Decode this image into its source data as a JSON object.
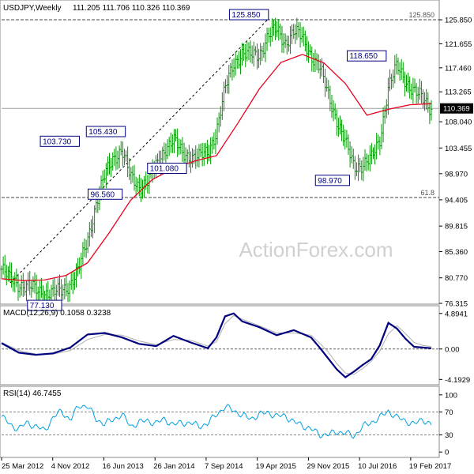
{
  "header": {
    "symbol_label": "USDJPY,Weekly",
    "ohlc_values": "111.205 111.706 110.326 110.369"
  },
  "watermark": "ActionForex.com",
  "colors": {
    "price_bars": "#009a00",
    "moving_average": "#e8001c",
    "macd_line": "#00007f",
    "macd_signal": "#b0b0b0",
    "rsi_line": "#00a0e0",
    "grid": "#c8c8c8",
    "annotation_box": "#000080",
    "current_price_box": "#000000"
  },
  "chart_data": [
    {
      "type": "line",
      "panel": "price",
      "ylim": [
        76.315,
        128.2
      ],
      "y_ticks": [
        "125.850",
        "121.655",
        "117.460",
        "113.265",
        "108.040",
        "103.455",
        "98.970",
        "94.405",
        "89.815",
        "85.360",
        "80.770",
        "76.315"
      ],
      "x_ticks": [
        "25 Mar 2012",
        "4 Nov 2012",
        "16 Jun 2013",
        "26 Jan 2014",
        "7 Sep 2014",
        "19 Apr 2015",
        "29 Nov 2015",
        "10 Jul 2016",
        "19 Feb 2017"
      ],
      "current_price": "110.369",
      "reference_lines": [
        {
          "label": "125.850",
          "value": 125.85
        },
        {
          "label": "61.8",
          "value": 94.8
        }
      ],
      "annotations": [
        {
          "label": "125.850",
          "x": 0.621,
          "y": 125.85
        },
        {
          "label": "103.730",
          "x": 0.181,
          "y": 103.73
        },
        {
          "label": "105.430",
          "x": 0.288,
          "y": 105.43
        },
        {
          "label": "96.560",
          "x": 0.241,
          "y": 96.56
        },
        {
          "label": "101.080",
          "x": 0.385,
          "y": 101.08
        },
        {
          "label": "118.650",
          "x": 0.895,
          "y": 118.65
        },
        {
          "label": "98.970",
          "x": 0.77,
          "y": 98.97
        },
        {
          "label": "77.130",
          "x": 0.1,
          "y": 77.13
        }
      ],
      "trendline": {
        "from": [
          0.02,
          79.9
        ],
        "to": [
          0.622,
          126.1
        ]
      },
      "series": [
        {
          "kind": "weekly_close",
          "x": [
            0.0,
            0.02,
            0.04,
            0.06,
            0.08,
            0.1,
            0.12,
            0.14,
            0.16,
            0.18,
            0.2,
            0.22,
            0.24,
            0.26,
            0.28,
            0.3,
            0.32,
            0.34,
            0.36,
            0.38,
            0.4,
            0.42,
            0.44,
            0.46,
            0.48,
            0.5,
            0.52,
            0.54,
            0.56,
            0.58,
            0.6,
            0.62,
            0.64,
            0.66,
            0.68,
            0.7,
            0.72,
            0.74,
            0.76,
            0.78,
            0.8,
            0.82,
            0.84,
            0.86,
            0.88,
            0.9,
            0.92,
            0.94,
            0.96,
            0.98,
            1.0
          ],
          "values": [
            82.3,
            80.5,
            79.8,
            79.2,
            78.7,
            78.2,
            78.0,
            78.6,
            79.8,
            82.2,
            87.5,
            93.8,
            98.5,
            101.8,
            103.2,
            98.2,
            96.8,
            97.7,
            100.2,
            103.5,
            104.8,
            102.5,
            102.1,
            101.8,
            102.6,
            106.5,
            113.6,
            118.3,
            120.1,
            119.5,
            119.8,
            123.1,
            124.0,
            121.9,
            123.8,
            122.6,
            119.8,
            117.4,
            112.8,
            108.4,
            104.3,
            100.3,
            100.6,
            101.4,
            104.9,
            114.2,
            117.6,
            115.3,
            113.4,
            111.9,
            110.369
          ]
        },
        {
          "kind": "moving_average",
          "x": [
            0.0,
            0.05,
            0.1,
            0.15,
            0.2,
            0.25,
            0.3,
            0.35,
            0.4,
            0.45,
            0.5,
            0.55,
            0.6,
            0.65,
            0.7,
            0.75,
            0.8,
            0.85,
            0.9,
            0.95,
            1.0
          ],
          "values": [
            80.6,
            80.3,
            80.4,
            81.2,
            83.4,
            88.6,
            94.3,
            97.9,
            99.9,
            101.2,
            102.1,
            107.8,
            113.8,
            118.4,
            119.8,
            118.3,
            114.7,
            109.2,
            110.2,
            111.0,
            111.2
          ]
        }
      ]
    },
    {
      "type": "line",
      "panel": "macd",
      "title": "MACD(12,26,9) 0.1058 0.3238",
      "ylim": [
        -4.1929,
        4.8941
      ],
      "y_ticks": [
        "4.8941",
        "0.00",
        "-4.1929"
      ],
      "series": [
        {
          "kind": "macd",
          "x": [
            0.0,
            0.04,
            0.08,
            0.12,
            0.16,
            0.2,
            0.24,
            0.28,
            0.32,
            0.36,
            0.4,
            0.44,
            0.48,
            0.5,
            0.52,
            0.54,
            0.56,
            0.6,
            0.64,
            0.68,
            0.72,
            0.74,
            0.76,
            0.78,
            0.8,
            0.82,
            0.84,
            0.86,
            0.88,
            0.9,
            0.92,
            0.94,
            0.96,
            0.98,
            1.0
          ],
          "values": [
            0.8,
            -0.5,
            -0.8,
            -0.6,
            0.2,
            2.0,
            2.2,
            1.6,
            0.7,
            0.4,
            1.8,
            0.9,
            0.1,
            1.6,
            4.5,
            4.9,
            3.8,
            3.0,
            1.9,
            2.6,
            1.6,
            0.2,
            -1.3,
            -2.8,
            -3.9,
            -3.1,
            -2.2,
            -1.4,
            0.5,
            3.6,
            2.8,
            1.4,
            0.3,
            0.2,
            0.1058
          ]
        },
        {
          "kind": "signal",
          "x": [
            0.0,
            0.04,
            0.08,
            0.12,
            0.16,
            0.2,
            0.24,
            0.28,
            0.32,
            0.36,
            0.4,
            0.44,
            0.48,
            0.5,
            0.52,
            0.54,
            0.56,
            0.6,
            0.64,
            0.68,
            0.72,
            0.74,
            0.76,
            0.78,
            0.8,
            0.82,
            0.84,
            0.86,
            0.88,
            0.9,
            0.92,
            0.94,
            0.96,
            0.98,
            1.0
          ],
          "values": [
            0.9,
            -0.2,
            -0.7,
            -0.7,
            -0.2,
            1.3,
            2.0,
            1.9,
            1.1,
            0.6,
            1.3,
            1.2,
            0.4,
            1.0,
            3.5,
            4.6,
            4.1,
            3.2,
            2.2,
            2.2,
            1.9,
            0.8,
            -0.4,
            -2.0,
            -3.3,
            -3.5,
            -2.7,
            -1.7,
            -0.3,
            2.1,
            3.2,
            2.1,
            0.9,
            0.5,
            0.3238
          ]
        }
      ]
    },
    {
      "type": "line",
      "panel": "rsi",
      "title": "RSI(14) 46.7455",
      "ylim": [
        0,
        100
      ],
      "y_ticks": [
        "100",
        "70",
        "30",
        "0"
      ],
      "series": [
        {
          "kind": "rsi",
          "x": [
            0.0,
            0.02,
            0.04,
            0.06,
            0.08,
            0.1,
            0.12,
            0.14,
            0.16,
            0.18,
            0.2,
            0.22,
            0.24,
            0.26,
            0.28,
            0.3,
            0.32,
            0.34,
            0.36,
            0.38,
            0.4,
            0.42,
            0.44,
            0.46,
            0.48,
            0.5,
            0.52,
            0.54,
            0.56,
            0.58,
            0.6,
            0.62,
            0.64,
            0.66,
            0.68,
            0.7,
            0.72,
            0.74,
            0.76,
            0.78,
            0.8,
            0.82,
            0.84,
            0.86,
            0.88,
            0.9,
            0.92,
            0.94,
            0.96,
            0.98,
            1.0
          ],
          "values": [
            62,
            48,
            40,
            52,
            44,
            38,
            60,
            72,
            55,
            82,
            80,
            58,
            49,
            57,
            66,
            45,
            52,
            55,
            50,
            58,
            47,
            52,
            50,
            46,
            49,
            67,
            78,
            74,
            63,
            59,
            65,
            70,
            62,
            64,
            52,
            47,
            40,
            31,
            30,
            36,
            33,
            28,
            44,
            52,
            60,
            72,
            60,
            55,
            48,
            58,
            46.7455
          ]
        }
      ]
    }
  ]
}
